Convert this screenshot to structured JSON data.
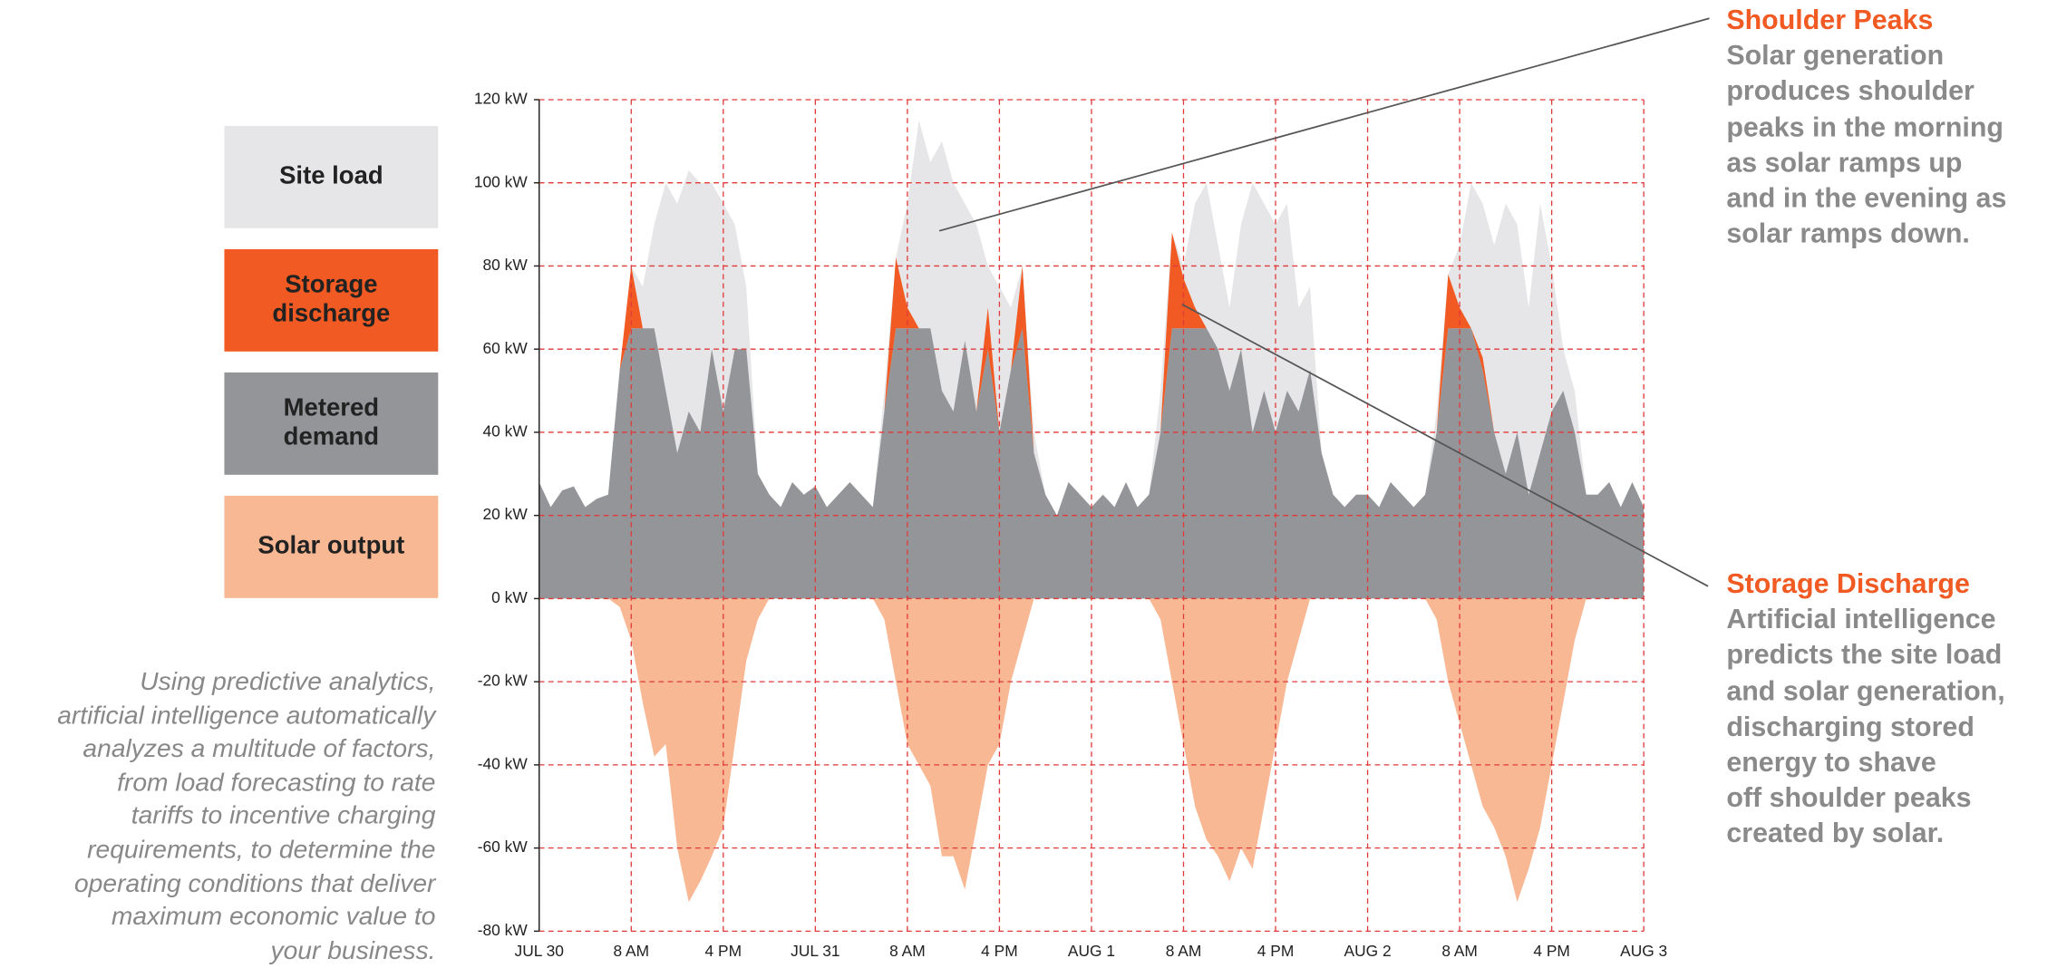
{
  "chart_data": {
    "type": "area",
    "xlim": [
      0,
      96
    ],
    "xticks": [
      {
        "value": 0,
        "label": "JUL 30"
      },
      {
        "value": 8,
        "label": "8 AM"
      },
      {
        "value": 16,
        "label": "4 PM"
      },
      {
        "value": 24,
        "label": "JUL 31"
      },
      {
        "value": 32,
        "label": "8 AM"
      },
      {
        "value": 40,
        "label": "4 PM"
      },
      {
        "value": 48,
        "label": "AUG 1"
      },
      {
        "value": 56,
        "label": "8 AM"
      },
      {
        "value": 64,
        "label": "4 PM"
      },
      {
        "value": 72,
        "label": "AUG 2"
      },
      {
        "value": 80,
        "label": "8 AM"
      },
      {
        "value": 88,
        "label": "4 PM"
      },
      {
        "value": 96,
        "label": "AUG 3"
      }
    ],
    "ylim": [
      -80,
      120
    ],
    "yticks": [
      {
        "value": -80,
        "label": "-80 kW"
      },
      {
        "value": -60,
        "label": "-60 kW"
      },
      {
        "value": -40,
        "label": "-40 kW"
      },
      {
        "value": -20,
        "label": "-20 kW"
      },
      {
        "value": 0,
        "label": "0 kW"
      },
      {
        "value": 20,
        "label": "20 kW"
      },
      {
        "value": 40,
        "label": "40 kW"
      },
      {
        "value": 60,
        "label": "60 kW"
      },
      {
        "value": 80,
        "label": "80 kW"
      },
      {
        "value": 100,
        "label": "100 kW"
      },
      {
        "value": 120,
        "label": "120 kW"
      }
    ],
    "grid": true,
    "legend": "left",
    "x": [
      0,
      1,
      2,
      3,
      4,
      5,
      6,
      7,
      8,
      9,
      10,
      11,
      12,
      13,
      14,
      15,
      16,
      17,
      18,
      19,
      20,
      21,
      22,
      23,
      24,
      25,
      26,
      27,
      28,
      29,
      30,
      31,
      32,
      33,
      34,
      35,
      36,
      37,
      38,
      39,
      40,
      41,
      42,
      43,
      44,
      45,
      46,
      47,
      48,
      49,
      50,
      51,
      52,
      53,
      54,
      55,
      56,
      57,
      58,
      59,
      60,
      61,
      62,
      63,
      64,
      65,
      66,
      67,
      68,
      69,
      70,
      71,
      72,
      73,
      74,
      75,
      76,
      77,
      78,
      79,
      80,
      81,
      82,
      83,
      84,
      85,
      86,
      87,
      88,
      89,
      90,
      91,
      92,
      93,
      94,
      95,
      96
    ],
    "series": [
      {
        "name": "Site load",
        "color": "#e6e6e8",
        "values": [
          28,
          22,
          26,
          27,
          22,
          24,
          25,
          55,
          80,
          75,
          90,
          100,
          95,
          103,
          100,
          100,
          95,
          90,
          75,
          30,
          25,
          22,
          28,
          25,
          27,
          22,
          25,
          28,
          25,
          22,
          50,
          82,
          95,
          115,
          105,
          110,
          100,
          95,
          90,
          80,
          75,
          70,
          80,
          40,
          25,
          20,
          28,
          25,
          22,
          25,
          22,
          28,
          22,
          25,
          50,
          88,
          80,
          95,
          100,
          85,
          70,
          90,
          100,
          95,
          90,
          95,
          70,
          75,
          35,
          25,
          22,
          25,
          25,
          22,
          28,
          25,
          22,
          25,
          45,
          78,
          85,
          100,
          95,
          85,
          95,
          90,
          70,
          95,
          80,
          60,
          50,
          25,
          25,
          28,
          22,
          28,
          22
        ]
      },
      {
        "name": "Storage discharge",
        "color": "#f15a22",
        "stacked": true,
        "values": [
          0,
          0,
          0,
          0,
          0,
          0,
          0,
          0,
          15,
          0,
          0,
          0,
          0,
          0,
          0,
          0,
          0,
          0,
          0,
          0,
          0,
          0,
          0,
          0,
          0,
          0,
          0,
          0,
          0,
          0,
          0,
          17,
          5,
          0,
          0,
          0,
          0,
          0,
          0,
          10,
          0,
          0,
          15,
          0,
          0,
          0,
          0,
          0,
          0,
          0,
          0,
          0,
          0,
          0,
          0,
          23,
          12,
          5,
          0,
          0,
          0,
          0,
          0,
          0,
          0,
          0,
          0,
          0,
          0,
          0,
          0,
          0,
          0,
          0,
          0,
          0,
          0,
          0,
          0,
          13,
          5,
          0,
          3,
          0,
          0,
          0,
          0,
          0,
          0,
          0,
          0,
          0,
          0,
          0,
          0,
          0,
          0
        ]
      },
      {
        "name": "Metered demand",
        "color": "#939598",
        "stacked": true,
        "values": [
          28,
          22,
          26,
          27,
          22,
          24,
          25,
          55,
          65,
          65,
          65,
          50,
          35,
          45,
          40,
          60,
          45,
          60,
          60,
          30,
          25,
          22,
          28,
          25,
          27,
          22,
          25,
          28,
          25,
          22,
          45,
          65,
          65,
          65,
          65,
          50,
          45,
          62,
          45,
          60,
          40,
          55,
          65,
          35,
          25,
          20,
          28,
          25,
          22,
          25,
          22,
          28,
          22,
          25,
          40,
          65,
          65,
          65,
          65,
          60,
          50,
          60,
          40,
          50,
          40,
          50,
          45,
          55,
          35,
          25,
          22,
          25,
          25,
          22,
          28,
          25,
          22,
          25,
          40,
          65,
          65,
          65,
          55,
          40,
          30,
          40,
          25,
          35,
          45,
          50,
          40,
          25,
          25,
          28,
          22,
          28,
          22
        ]
      },
      {
        "name": "Solar output",
        "color": "#f9b894",
        "values": [
          0,
          0,
          0,
          0,
          0,
          0,
          0,
          -2,
          -10,
          -25,
          -38,
          -35,
          -60,
          -73,
          -68,
          -62,
          -55,
          -35,
          -15,
          -5,
          0,
          0,
          0,
          0,
          0,
          0,
          0,
          0,
          0,
          0,
          -5,
          -20,
          -35,
          -40,
          -45,
          -62,
          -62,
          -70,
          -55,
          -40,
          -35,
          -20,
          -10,
          0,
          0,
          0,
          0,
          0,
          0,
          0,
          0,
          0,
          0,
          0,
          -5,
          -20,
          -35,
          -50,
          -58,
          -62,
          -68,
          -60,
          -65,
          -50,
          -35,
          -20,
          -10,
          0,
          0,
          0,
          0,
          0,
          0,
          0,
          0,
          0,
          0,
          0,
          -5,
          -20,
          -30,
          -40,
          -50,
          -55,
          -62,
          -73,
          -65,
          -55,
          -40,
          -25,
          -10,
          0,
          0,
          0,
          0,
          0,
          0
        ]
      }
    ],
    "caption": "Using predictive analytics,\nartificial intelligence automatically\nanalyzes a multitude of factors,\nfrom load forecasting to rate\ntariffs to incentive charging\nrequirements, to determine the\noperating conditions that deliver\nmaximum economic value to\nyour business.",
    "annotations": [
      {
        "title": "Shoulder Peaks",
        "text": "Solar generation\nproduces shoulder\npeaks in the morning\nas solar ramps up\nand in the evening as\nsolar ramps down."
      },
      {
        "title": "Storage Discharge",
        "text": "Artificial intelligence\npredicts the site load\nand solar generation,\ndischarging stored\nenergy to shave\noff shoulder peaks\ncreated by solar."
      }
    ]
  }
}
